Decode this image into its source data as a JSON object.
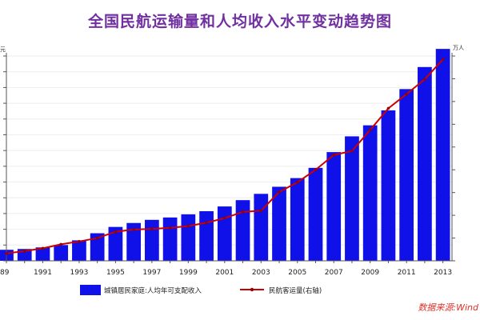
{
  "chart_data": {
    "type": "bar",
    "title": "全国民航运输量和人均收入水平变动趋势图",
    "left_axis_unit": "元",
    "right_axis_unit": "万人",
    "years": [
      1989,
      1990,
      1991,
      1992,
      1993,
      1994,
      1995,
      1996,
      1997,
      1998,
      1999,
      2000,
      2001,
      2002,
      2003,
      2004,
      2005,
      2006,
      2007,
      2008,
      2009,
      2010,
      2011,
      2012,
      2013
    ],
    "x_tick_labels": [
      "89",
      "1991",
      "1993",
      "1995",
      "1997",
      "1999",
      "2001",
      "2003",
      "2005",
      "2007",
      "2009",
      "2011",
      "2013"
    ],
    "ylim_left": [
      0,
      26000
    ],
    "ylim_right": [
      0,
      36000
    ],
    "series": [
      {
        "name": "城镇居民家庭:人均年可支配收入",
        "type": "bar",
        "axis": "left",
        "color": "#1010e8",
        "values": [
          1400,
          1500,
          1700,
          2000,
          2600,
          3500,
          4300,
          4800,
          5200,
          5500,
          5900,
          6300,
          6900,
          7700,
          8500,
          9400,
          10500,
          11800,
          13800,
          15800,
          17200,
          19100,
          21800,
          24600,
          26900
        ]
      },
      {
        "name": "民航客运量(右轴)",
        "type": "line",
        "axis": "right",
        "color": "#cc0000",
        "values": [
          1300,
          1700,
          2200,
          2900,
          3400,
          4000,
          5100,
          5500,
          5600,
          5800,
          6100,
          6700,
          7500,
          8600,
          8800,
          12100,
          13800,
          16000,
          18600,
          19300,
          23000,
          26800,
          29300,
          31900,
          35400
        ]
      }
    ],
    "legend_position": "bottom",
    "source": "数据来源:Wind"
  }
}
